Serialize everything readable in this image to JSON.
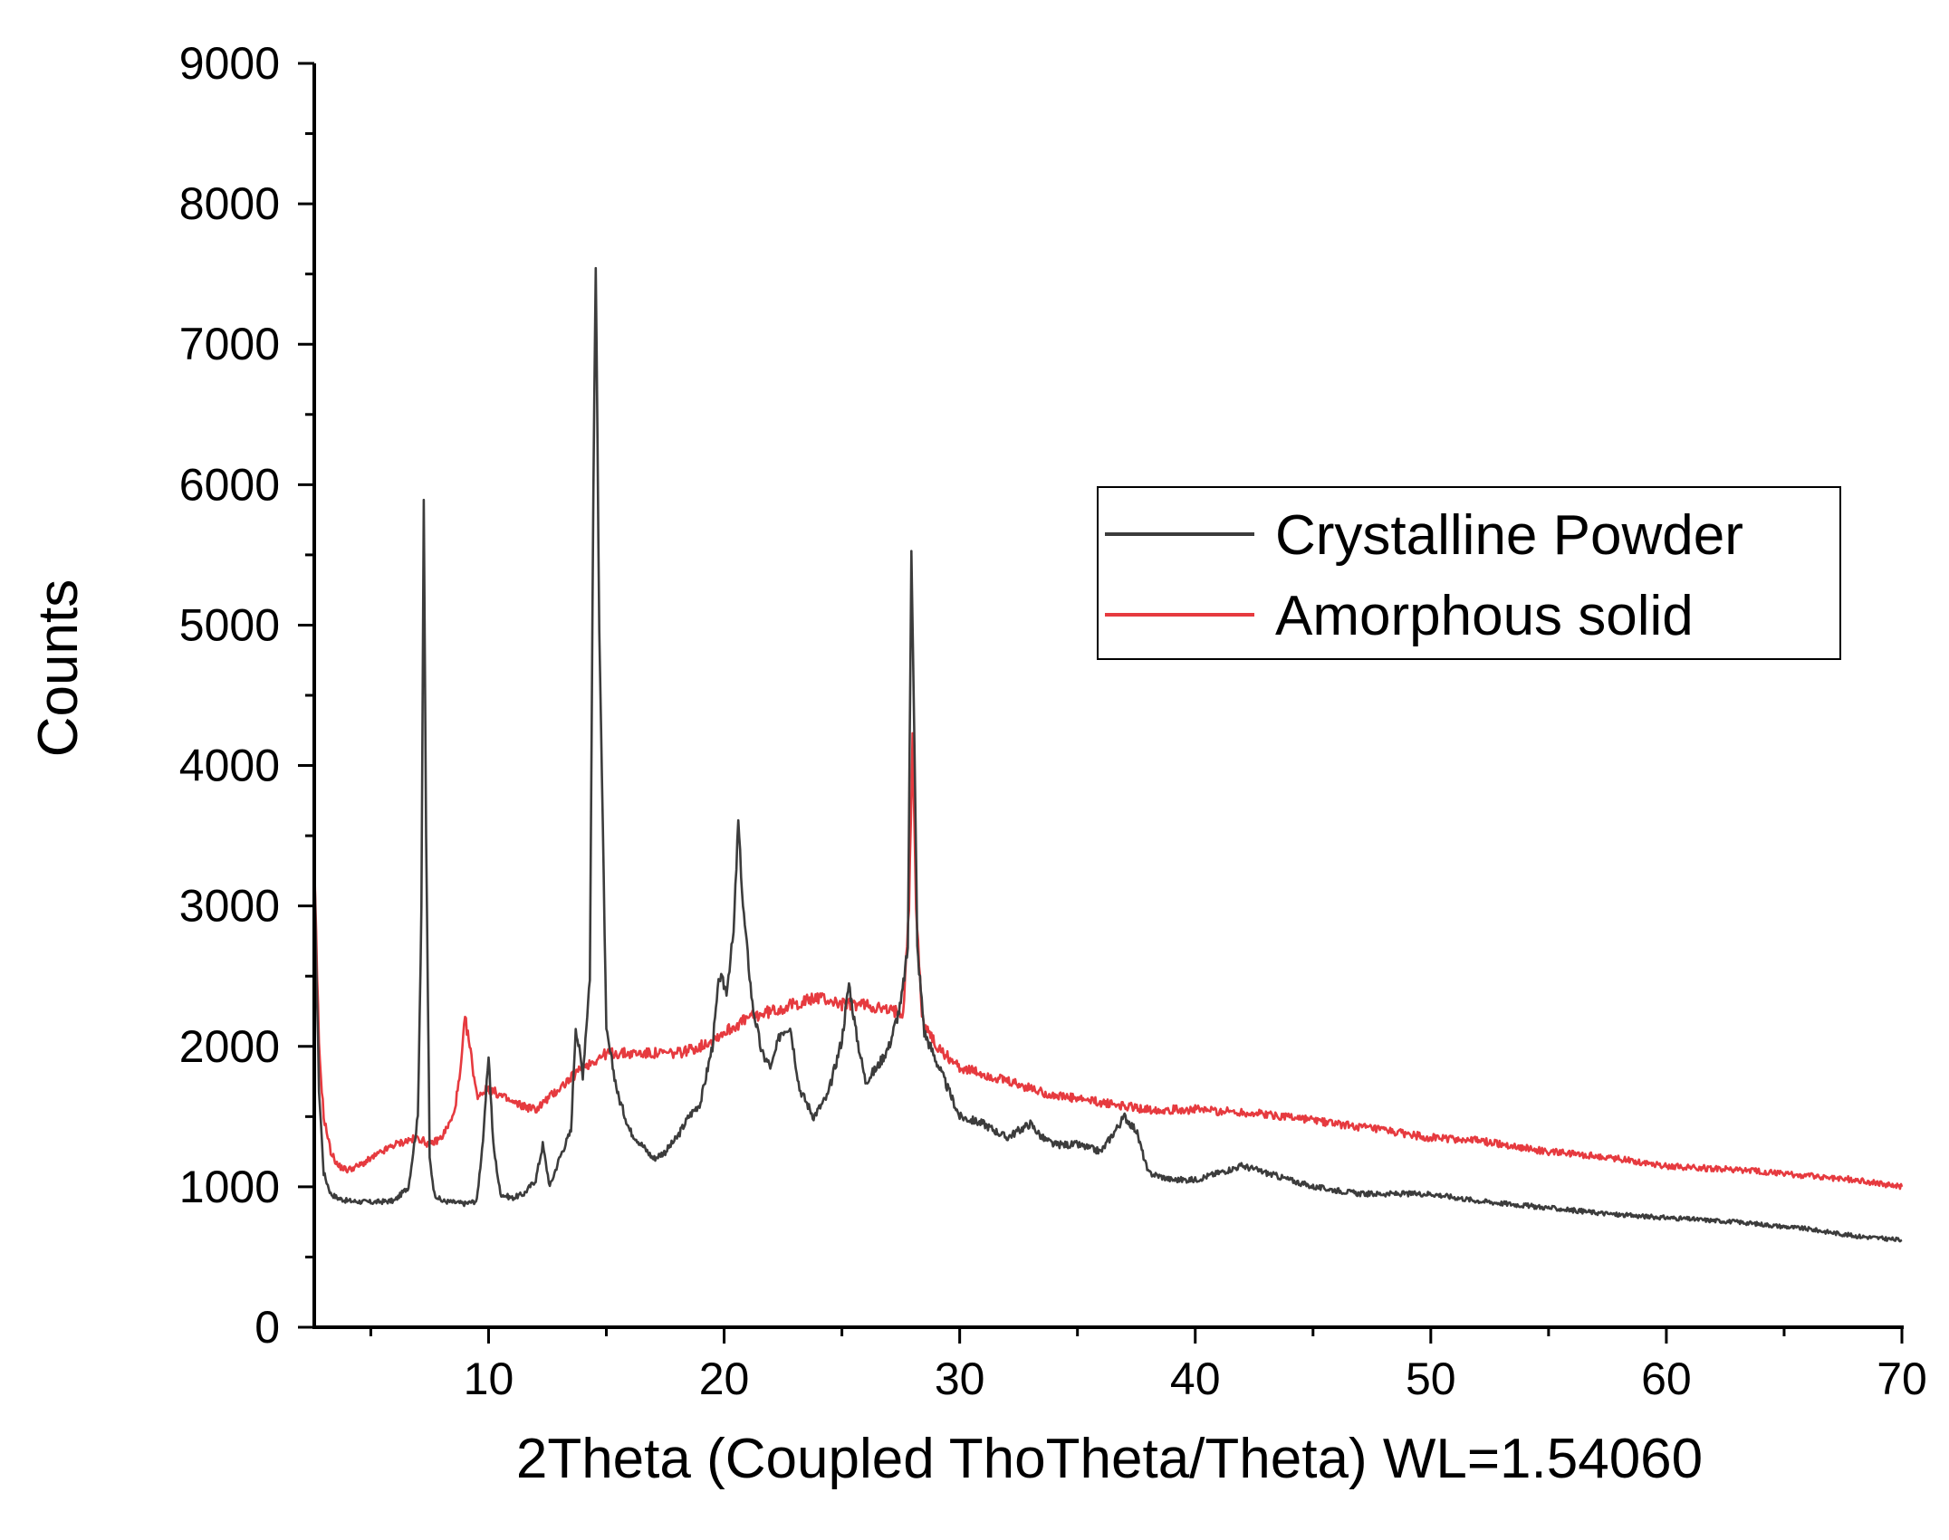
{
  "chart_data": {
    "type": "line",
    "title": "",
    "xlabel": "2Theta (Coupled ThoTheta/Theta) WL=1.54060",
    "ylabel": "Counts",
    "xlim": [
      2.6,
      70
    ],
    "ylim": [
      0,
      9000
    ],
    "x_ticks": [
      10,
      20,
      30,
      40,
      50,
      60,
      70
    ],
    "x_tick_labels": [
      "10",
      "20",
      "30",
      "40",
      "50",
      "60",
      "70"
    ],
    "y_ticks": [
      0,
      1000,
      2000,
      3000,
      4000,
      5000,
      6000,
      7000,
      8000,
      9000
    ],
    "y_tick_labels": [
      "0",
      "1000",
      "2000",
      "3000",
      "4000",
      "5000",
      "6000",
      "7000",
      "8000",
      "9000"
    ],
    "grid": false,
    "legend_position": "right",
    "series": [
      {
        "name": "Crystalline Powder",
        "color": "#3c3c3c",
        "x": [
          2.6,
          2.8,
          3.0,
          3.3,
          3.6,
          4.0,
          5.0,
          6.0,
          6.6,
          7.0,
          7.15,
          7.25,
          7.35,
          7.5,
          7.7,
          8.0,
          8.5,
          9.0,
          9.5,
          9.8,
          10.0,
          10.2,
          10.5,
          11.0,
          11.5,
          12.0,
          12.3,
          12.6,
          13.0,
          13.5,
          13.7,
          14.0,
          14.3,
          14.45,
          14.55,
          14.7,
          15.0,
          15.5,
          16.0,
          16.5,
          17.0,
          17.5,
          18.0,
          18.5,
          19.0,
          19.5,
          19.8,
          20.1,
          20.4,
          20.6,
          20.8,
          21.2,
          21.6,
          22.0,
          22.4,
          22.8,
          23.2,
          23.8,
          24.4,
          25.0,
          25.3,
          25.6,
          26.0,
          26.5,
          27.0,
          27.5,
          27.8,
          27.95,
          28.05,
          28.2,
          28.5,
          29.0,
          29.5,
          30.0,
          31.0,
          32.0,
          33.0,
          33.5,
          34.0,
          35.0,
          36.0,
          37.0,
          37.5,
          38.0,
          39.0,
          40.0,
          41.0,
          42.0,
          43.0,
          44.0,
          45.0,
          47.0,
          49.0,
          50.0,
          52.0,
          55.0,
          58.0,
          60.0,
          63.0,
          66.0,
          68.0,
          70.0
        ],
        "values": [
          3300,
          1700,
          1100,
          950,
          920,
          900,
          890,
          900,
          1000,
          1500,
          3000,
          5850,
          3500,
          1200,
          950,
          900,
          890,
          880,
          900,
          1400,
          1950,
          1300,
          950,
          920,
          950,
          1050,
          1300,
          1000,
          1200,
          1400,
          2150,
          1800,
          2500,
          6000,
          7550,
          5000,
          2100,
          1650,
          1400,
          1300,
          1200,
          1250,
          1350,
          1500,
          1600,
          2000,
          2500,
          2400,
          2800,
          3600,
          3000,
          2300,
          1950,
          1850,
          2100,
          2150,
          1700,
          1500,
          1650,
          2050,
          2450,
          2100,
          1750,
          1850,
          2000,
          2300,
          2700,
          5550,
          4500,
          2700,
          2100,
          1900,
          1700,
          1500,
          1450,
          1350,
          1450,
          1350,
          1300,
          1300,
          1250,
          1500,
          1400,
          1100,
          1050,
          1050,
          1100,
          1150,
          1100,
          1050,
          1000,
          950,
          950,
          950,
          900,
          850,
          800,
          780,
          750,
          700,
          650,
          620
        ]
      },
      {
        "name": "Amorphous solid",
        "color": "#e63a3f",
        "x": [
          2.6,
          2.8,
          3.0,
          3.3,
          3.6,
          4.0,
          4.5,
          5.0,
          6.0,
          7.0,
          7.5,
          8.0,
          8.5,
          8.8,
          9.0,
          9.2,
          9.5,
          10.0,
          10.5,
          11.0,
          12.0,
          13.0,
          14.0,
          15.0,
          16.0,
          17.0,
          18.0,
          19.0,
          20.0,
          21.0,
          22.0,
          23.0,
          24.0,
          25.0,
          26.0,
          27.0,
          27.6,
          27.85,
          28.0,
          28.15,
          28.4,
          29.0,
          30.0,
          32.0,
          34.0,
          36.0,
          38.0,
          40.0,
          42.0,
          44.0,
          46.0,
          48.0,
          50.0,
          52.0,
          55.0,
          58.0,
          60.0,
          63.0,
          66.0,
          68.0,
          70.0
        ],
        "values": [
          3300,
          2000,
          1500,
          1250,
          1150,
          1120,
          1150,
          1200,
          1300,
          1350,
          1300,
          1350,
          1500,
          1800,
          2200,
          2000,
          1650,
          1700,
          1650,
          1600,
          1550,
          1700,
          1850,
          1950,
          1950,
          1950,
          1950,
          2000,
          2100,
          2200,
          2250,
          2300,
          2350,
          2300,
          2300,
          2250,
          2250,
          3000,
          4200,
          3000,
          2200,
          2000,
          1850,
          1750,
          1650,
          1600,
          1550,
          1550,
          1530,
          1500,
          1450,
          1400,
          1350,
          1330,
          1250,
          1200,
          1150,
          1120,
          1080,
          1050,
          1000
        ]
      }
    ]
  }
}
